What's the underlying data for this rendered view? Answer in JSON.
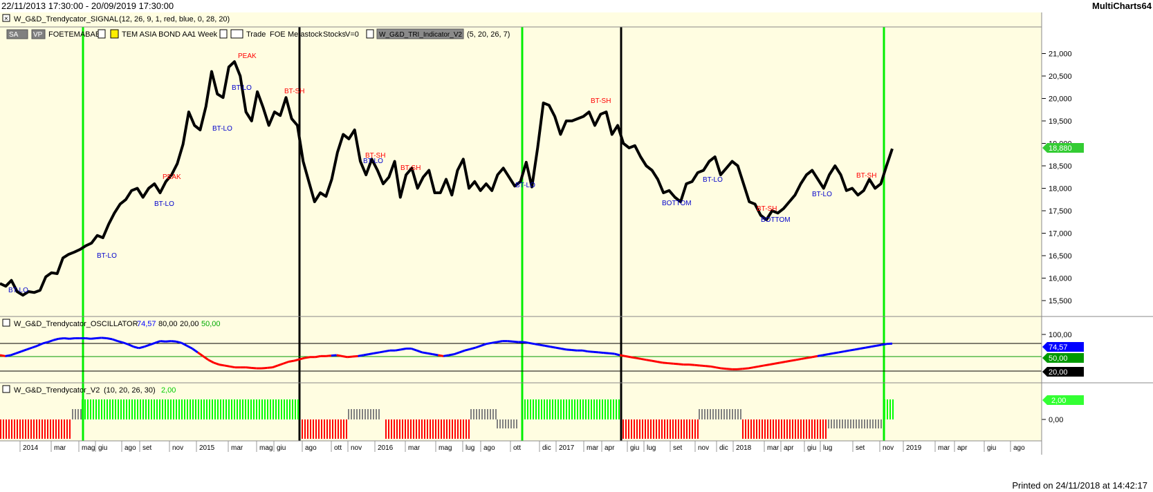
{
  "window": {
    "date_range": "22/11/2013 17:30:00 - 20/09/2019 17:30:00",
    "app_name": "MultiCharts64"
  },
  "footer": {
    "printed": "Printed on 24/11/2018 at 14:42:17"
  },
  "toolbar": {
    "sa": "SA",
    "vp": "VP",
    "symbol_code": "FOETEMABAE",
    "symbol_name": "TEM ASIA BOND AA",
    "resolution": "1 Week",
    "type_name": "Trade",
    "exchange": "FOE",
    "source": "Metastock",
    "category": "Stocks",
    "volume": "V=0",
    "indicator_name": "W_G&D_TRI_Indicator_V2",
    "indicator_params": "(5, 20, 26, 7)"
  },
  "panes": {
    "signal": {
      "title": "W_G&D_Trendycator_SIGNAL",
      "params": "(12, 26, 9, 1, red, blue, 0, 28, 20)"
    },
    "oscillator": {
      "title": "W_G&D_Trendycator_OSCILLATOR",
      "v1": "74,57",
      "v2": "80,00",
      "v3": "20,00",
      "v4": "50,00"
    },
    "trendycator": {
      "title": "W_G&D_Trendycator_V2",
      "params": "(10, 20, 26, 30)",
      "value": "2,00"
    }
  },
  "price_axis": {
    "ticks": [
      "21,000",
      "20,500",
      "20,000",
      "19,500",
      "19,000",
      "18,500",
      "18,000",
      "17,500",
      "17,000",
      "16,500",
      "16,000",
      "15,500"
    ],
    "last_price": "18,880"
  },
  "osc_axis": {
    "ticks": [
      "100,00",
      "0,00"
    ],
    "badges": [
      "74,57",
      "50,00",
      "20,00"
    ]
  },
  "hist_axis": {
    "ticks": [
      "0,00"
    ],
    "badge": "2,00"
  },
  "time_axis": [
    "2014",
    "mar",
    "mag",
    "giu",
    "ago",
    "set",
    "nov",
    "2015",
    "mar",
    "mag",
    "giu",
    "ago",
    "ott",
    "nov",
    "2016",
    "mar",
    "mag",
    "lug",
    "ago",
    "ott",
    "dic",
    "2017",
    "mar",
    "apr",
    "giu",
    "lug",
    "set",
    "nov",
    "dic",
    "2018",
    "mar",
    "apr",
    "giu",
    "lug",
    "set",
    "nov",
    "2019",
    "mar",
    "apr",
    "giu",
    "ago"
  ],
  "chart_data": {
    "type": "line",
    "title": "",
    "price_series": [
      15880,
      15820,
      15950,
      15700,
      15620,
      15700,
      15680,
      15730,
      16030,
      16120,
      16100,
      16450,
      16530,
      16580,
      16640,
      16720,
      16780,
      16950,
      16900,
      17200,
      17450,
      17650,
      17750,
      17950,
      18000,
      17800,
      18000,
      18100,
      17900,
      18150,
      18300,
      18550,
      18980,
      19700,
      19400,
      19300,
      19820,
      20600,
      20100,
      20020,
      20700,
      20820,
      20500,
      19700,
      19500,
      20150,
      19800,
      19400,
      19700,
      19620,
      20020,
      19550,
      19400,
      18600,
      18150,
      17700,
      17900,
      17820,
      18200,
      18800,
      19200,
      19100,
      19300,
      18600,
      18300,
      18650,
      18400,
      18100,
      18250,
      18600,
      17800,
      18300,
      18450,
      18000,
      18250,
      18400,
      17900,
      17900,
      18200,
      17850,
      18400,
      18650,
      18000,
      18150,
      17950,
      18100,
      17950,
      18300,
      18450,
      18250,
      18050,
      18150,
      18580,
      18030,
      18900,
      19900,
      19850,
      19600,
      19200,
      19500,
      19500,
      19550,
      19600,
      19700,
      19400,
      19650,
      19700,
      19200,
      19400,
      19000,
      18900,
      18950,
      18700,
      18500,
      18400,
      18200,
      17900,
      17950,
      17800,
      17700,
      18100,
      18150,
      18350,
      18400,
      18600,
      18700,
      18300,
      18450,
      18600,
      18500,
      18100,
      17700,
      17650,
      17400,
      17300,
      17500,
      17450,
      17550,
      17700,
      17850,
      18100,
      18300,
      18400,
      18200,
      18000,
      18300,
      18500,
      18300,
      17950,
      18000,
      17850,
      17950,
      18200,
      18000,
      18100,
      18500,
      18880
    ],
    "osc_series": [
      50,
      48,
      50,
      54,
      58,
      62,
      66,
      70,
      75,
      78,
      82,
      85,
      86,
      85,
      86,
      86,
      86,
      85,
      86,
      87,
      86,
      84,
      80,
      77,
      73,
      68,
      65,
      68,
      72,
      76,
      80,
      79,
      80,
      79,
      76,
      70,
      64,
      56,
      48,
      40,
      34,
      30,
      28,
      26,
      24,
      24,
      24,
      23,
      22,
      22,
      23,
      24,
      28,
      32,
      36,
      38,
      41,
      44,
      46,
      46,
      48,
      48,
      49,
      50,
      48,
      46,
      47,
      48,
      50,
      52,
      54,
      56,
      58,
      60,
      60,
      62,
      64,
      64,
      60,
      56,
      54,
      52,
      50,
      48,
      50,
      52,
      56,
      60,
      63,
      66,
      70,
      74,
      76,
      78,
      80,
      80,
      79,
      78,
      78,
      76,
      74,
      72,
      70,
      68,
      66,
      64,
      62,
      61,
      60,
      60,
      58,
      57,
      56,
      55,
      54,
      53,
      50,
      48,
      46,
      44,
      42,
      40,
      38,
      36,
      34,
      33,
      32,
      31,
      30,
      30,
      29,
      28,
      27,
      26,
      24,
      22,
      21,
      20,
      20,
      21,
      22,
      24,
      26,
      28,
      30,
      32,
      34,
      36,
      38,
      40,
      42,
      44,
      46,
      48,
      50,
      52,
      54,
      56,
      58,
      60,
      62,
      64,
      66,
      68,
      70,
      72,
      74,
      74.57
    ],
    "oscillator_levels": {
      "upper": 80,
      "middle": 50,
      "lower": 20
    },
    "oscillator_last": 74.57,
    "histogram_last": 2.0,
    "ylim": [
      15300,
      21300
    ],
    "oscillator_ylim": [
      0,
      100
    ],
    "annotations": [
      {
        "text": "BT-LO",
        "color": "blue"
      },
      {
        "text": "BT-LO",
        "color": "blue"
      },
      {
        "text": "BT-LO",
        "color": "blue"
      },
      {
        "text": "PEAK",
        "color": "red"
      },
      {
        "text": "BT-LO",
        "color": "blue"
      },
      {
        "text": "BT-LO",
        "color": "blue"
      },
      {
        "text": "PEAK",
        "color": "red"
      },
      {
        "text": "BT-SH",
        "color": "red"
      },
      {
        "text": "BT-SH",
        "color": "red"
      },
      {
        "text": "BT-LO",
        "color": "blue"
      },
      {
        "text": "BT-SH",
        "color": "red"
      },
      {
        "text": "BT-LO",
        "color": "blue"
      },
      {
        "text": "BT-SH",
        "color": "red"
      },
      {
        "text": "BOTTOM",
        "color": "blue"
      },
      {
        "text": "BT-LO",
        "color": "blue"
      },
      {
        "text": "BT-SH",
        "color": "red"
      },
      {
        "text": "BOTTOM",
        "color": "blue"
      },
      {
        "text": "BT-LO",
        "color": "blue"
      },
      {
        "text": "BT-SH",
        "color": "red"
      }
    ],
    "colors": {
      "price": "#000000",
      "osc_up": "#0000ff",
      "osc_down": "#ff0000",
      "hist_up": "#00ff00",
      "hist_down": "#ff0000",
      "hist_neutral": "#808080",
      "bg": "#fffde1"
    }
  }
}
